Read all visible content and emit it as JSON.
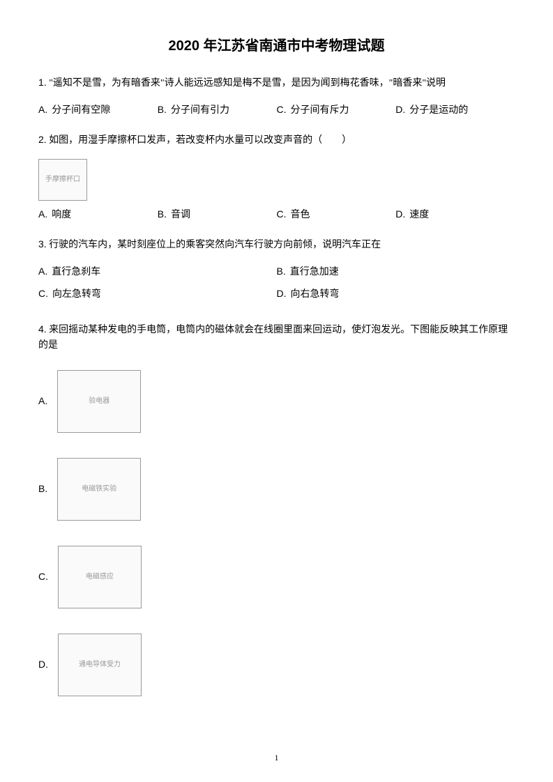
{
  "title": "2020 年江苏省南通市中考物理试题",
  "q1": {
    "num": "1.",
    "text": "\"遥知不是雪，为有暗香来\"诗人能远远感知是梅不是雪，是因为闻到梅花香味，\"暗香来\"说明",
    "opts": {
      "A": "分子间有空隙",
      "B": "分子间有引力",
      "C": "分子间有斥力",
      "D": "分子是运动的"
    }
  },
  "q2": {
    "num": "2.",
    "text": "如图，用湿手摩擦杯口发声，若改变杯内水量可以改变声音的（　　）",
    "img_label": "手摩擦杯口",
    "opts": {
      "A": "响度",
      "B": "音调",
      "C": "音色",
      "D": "速度"
    }
  },
  "q3": {
    "num": "3.",
    "text": "行驶的汽车内，某时刻座位上的乘客突然向汽车行驶方向前倾，说明汽车正在",
    "opts": {
      "A": "直行急刹车",
      "B": "直行急加速",
      "C": "向左急转弯",
      "D": "向右急转弯"
    }
  },
  "q4": {
    "num": "4.",
    "text": "来回摇动某种发电的手电筒，电筒内的磁体就会在线圈里面来回运动，使灯泡发光。下图能反映其工作原理的是",
    "imgs": {
      "A": "验电器",
      "B": "电磁铁实验",
      "C": "电磁感应",
      "D": "通电导体受力"
    }
  },
  "page_number": "1"
}
